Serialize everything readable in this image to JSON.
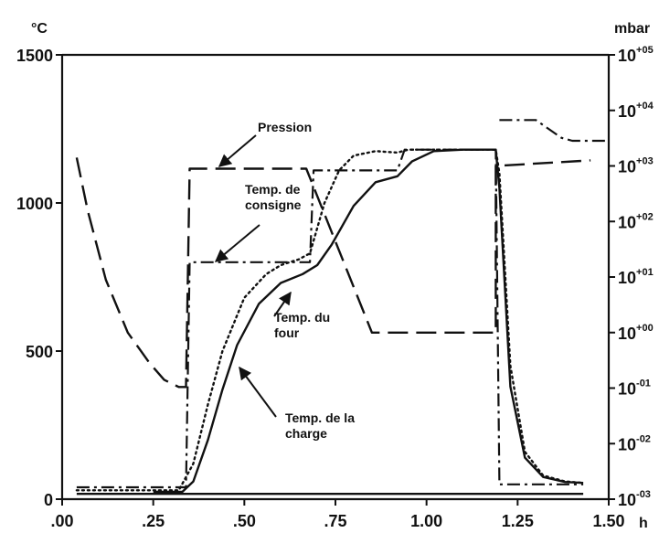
{
  "chart_data": {
    "type": "line",
    "xlabel": "h",
    "ylabel": "°C",
    "y2label": "mbar",
    "xlim": [
      0,
      1.5
    ],
    "ylim": [
      0,
      1500
    ],
    "y2_scale": "log",
    "y2lim_exponent": [
      -3,
      5
    ],
    "x_ticks": [
      ".00",
      ".25",
      ".50",
      ".75",
      "1.00",
      "1.25",
      "1.50"
    ],
    "x_tick_values": [
      0,
      0.25,
      0.5,
      0.75,
      1.0,
      1.25,
      1.5
    ],
    "y_ticks": [
      "0",
      "500",
      "1000",
      "1500"
    ],
    "y_tick_values": [
      0,
      500,
      1000,
      1500
    ],
    "y2_ticks": [
      {
        "base": "10",
        "exp": "-03",
        "value": -3
      },
      {
        "base": "10",
        "exp": "-02",
        "value": -2
      },
      {
        "base": "10",
        "exp": "-01",
        "value": -1
      },
      {
        "base": "10",
        "exp": "+00",
        "value": 0
      },
      {
        "base": "10",
        "exp": "+01",
        "value": 1
      },
      {
        "base": "10",
        "exp": "+02",
        "value": 2
      },
      {
        "base": "10",
        "exp": "+03",
        "value": 3
      },
      {
        "base": "10",
        "exp": "+04",
        "value": 4
      },
      {
        "base": "10",
        "exp": "+05",
        "value": 5
      }
    ],
    "annotations": [
      {
        "lines": [
          "Pression"
        ]
      },
      {
        "lines": [
          "Temp. de",
          "consigne"
        ]
      },
      {
        "lines": [
          "Temp. du",
          "four"
        ]
      },
      {
        "lines": [
          "Temp. de la",
          "charge"
        ]
      }
    ],
    "series": [
      {
        "key": "pression",
        "axis": "y2",
        "style": "dashed",
        "segments": [
          [
            [
              0.04,
              3.15
            ],
            [
              0.07,
              2.2
            ],
            [
              0.12,
              0.95
            ],
            [
              0.18,
              0.0
            ],
            [
              0.24,
              -0.55
            ],
            [
              0.28,
              -0.85
            ],
            [
              0.32,
              -0.98
            ],
            [
              0.34,
              -0.98
            ],
            [
              0.35,
              2.95
            ],
            [
              0.67,
              2.95
            ],
            [
              0.85,
              0.0
            ],
            [
              1.19,
              0.0
            ],
            [
              1.19,
              3.0
            ],
            [
              1.45,
              3.1
            ]
          ]
        ]
      },
      {
        "key": "consigne",
        "axis": "y",
        "style": "dash-dot",
        "segments": [
          [
            [
              0.04,
              40
            ],
            [
              0.34,
              40
            ],
            [
              0.35,
              800
            ],
            [
              0.68,
              800
            ],
            [
              0.69,
              1110
            ],
            [
              0.92,
              1110
            ],
            [
              0.94,
              1180
            ],
            [
              1.19,
              1180
            ],
            [
              1.2,
              50
            ],
            [
              1.43,
              50
            ]
          ],
          [
            [
              1.2,
              1280
            ],
            [
              1.3,
              1280
            ],
            [
              1.37,
              1220
            ],
            [
              1.4,
              1210
            ],
            [
              1.5,
              1210
            ]
          ]
        ]
      },
      {
        "key": "four",
        "axis": "y",
        "style": "dotted",
        "segments": [
          [
            [
              0.04,
              30
            ],
            [
              0.32,
              30
            ],
            [
              0.36,
              120
            ],
            [
              0.4,
              320
            ],
            [
              0.44,
              500
            ],
            [
              0.5,
              680
            ],
            [
              0.56,
              760
            ],
            [
              0.6,
              790
            ],
            [
              0.65,
              810
            ],
            [
              0.68,
              830
            ],
            [
              0.72,
              1000
            ],
            [
              0.76,
              1110
            ],
            [
              0.8,
              1160
            ],
            [
              0.86,
              1175
            ],
            [
              0.92,
              1170
            ],
            [
              0.95,
              1180
            ],
            [
              1.19,
              1180
            ],
            [
              1.2,
              1100
            ],
            [
              1.23,
              450
            ],
            [
              1.27,
              160
            ],
            [
              1.32,
              80
            ],
            [
              1.38,
              60
            ],
            [
              1.43,
              55
            ]
          ]
        ]
      },
      {
        "key": "charge",
        "axis": "y",
        "style": "solid",
        "segments": [
          [
            [
              0.25,
              25
            ],
            [
              0.33,
              25
            ],
            [
              0.36,
              60
            ],
            [
              0.4,
              200
            ],
            [
              0.44,
              370
            ],
            [
              0.48,
              520
            ],
            [
              0.54,
              660
            ],
            [
              0.6,
              730
            ],
            [
              0.66,
              760
            ],
            [
              0.7,
              790
            ],
            [
              0.74,
              860
            ],
            [
              0.8,
              990
            ],
            [
              0.86,
              1070
            ],
            [
              0.92,
              1090
            ],
            [
              0.96,
              1140
            ],
            [
              1.02,
              1175
            ],
            [
              1.1,
              1180
            ],
            [
              1.19,
              1180
            ],
            [
              1.2,
              1050
            ],
            [
              1.23,
              380
            ],
            [
              1.27,
              140
            ],
            [
              1.32,
              75
            ],
            [
              1.38,
              58
            ],
            [
              1.43,
              55
            ]
          ]
        ]
      },
      {
        "key": "baseline",
        "axis": "y",
        "style": "solid",
        "segments": [
          [
            [
              0.04,
              18
            ],
            [
              1.43,
              18
            ]
          ]
        ]
      }
    ]
  }
}
